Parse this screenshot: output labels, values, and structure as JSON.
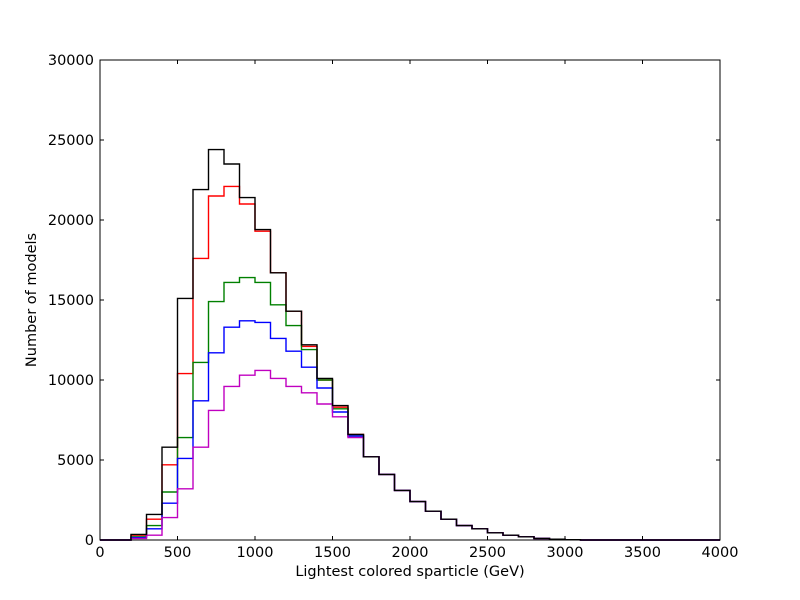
{
  "chart_data": {
    "type": "step-histogram",
    "title": "",
    "xlabel": "Lightest colored sparticle (GeV)",
    "ylabel": "Number of models",
    "xlim": [
      0,
      4000
    ],
    "ylim": [
      0,
      30000
    ],
    "xticks": [
      0,
      500,
      1000,
      1500,
      2000,
      2500,
      3000,
      3500,
      4000
    ],
    "yticks": [
      0,
      5000,
      10000,
      15000,
      20000,
      25000,
      30000
    ],
    "grid": false,
    "legend": "none",
    "bin_width": 100,
    "bin_edges": [
      0,
      100,
      200,
      300,
      400,
      500,
      600,
      700,
      800,
      900,
      1000,
      1100,
      1200,
      1300,
      1400,
      1500,
      1600,
      1700,
      1800,
      1900,
      2000,
      2100,
      2200,
      2300,
      2400,
      2500,
      2600,
      2700,
      2800,
      2900,
      3000,
      3100,
      3200,
      3300,
      3400,
      3500,
      3600,
      3700,
      3800,
      3900,
      4000
    ],
    "series": [
      {
        "color": "#ff0000",
        "values": [
          0,
          0,
          300,
          1300,
          4700,
          10400,
          17600,
          21500,
          22100,
          21000,
          19300,
          16700,
          14300,
          12100,
          10000,
          8300,
          6600,
          5200,
          4100,
          3100,
          2400,
          1800,
          1300,
          900,
          700,
          450,
          300,
          200,
          100,
          50,
          20,
          0,
          0,
          0,
          0,
          0,
          0,
          0,
          0,
          0
        ]
      },
      {
        "color": "#008000",
        "values": [
          0,
          0,
          200,
          900,
          3000,
          6400,
          11100,
          14900,
          16100,
          16400,
          16100,
          14700,
          13400,
          11900,
          10000,
          8200,
          6500,
          5200,
          4100,
          3100,
          2400,
          1800,
          1300,
          900,
          700,
          450,
          300,
          200,
          100,
          50,
          20,
          0,
          0,
          0,
          0,
          0,
          0,
          0,
          0,
          0
        ]
      },
      {
        "color": "#0000ff",
        "values": [
          0,
          0,
          150,
          700,
          2300,
          5100,
          8700,
          11700,
          13300,
          13700,
          13600,
          12600,
          11800,
          10800,
          9500,
          8000,
          6500,
          5200,
          4100,
          3100,
          2400,
          1800,
          1300,
          900,
          700,
          450,
          300,
          200,
          100,
          50,
          20,
          0,
          0,
          0,
          0,
          0,
          0,
          0,
          0,
          0
        ]
      },
      {
        "color": "#c000c0",
        "values": [
          0,
          0,
          100,
          300,
          1400,
          3200,
          5800,
          8100,
          9600,
          10300,
          10600,
          10100,
          9600,
          9200,
          8500,
          7700,
          6400,
          5200,
          4100,
          3100,
          2400,
          1800,
          1300,
          900,
          700,
          450,
          300,
          200,
          100,
          50,
          20,
          0,
          0,
          0,
          0,
          0,
          0,
          0,
          0,
          0
        ]
      },
      {
        "color": "#000000",
        "values": [
          0,
          0,
          350,
          1600,
          5800,
          15100,
          21900,
          24400,
          23500,
          21400,
          19400,
          16700,
          14300,
          12200,
          10100,
          8400,
          6600,
          5200,
          4100,
          3100,
          2400,
          1800,
          1300,
          900,
          700,
          450,
          300,
          200,
          100,
          50,
          20,
          0,
          0,
          0,
          0,
          0,
          0,
          0,
          0,
          0
        ]
      }
    ]
  }
}
